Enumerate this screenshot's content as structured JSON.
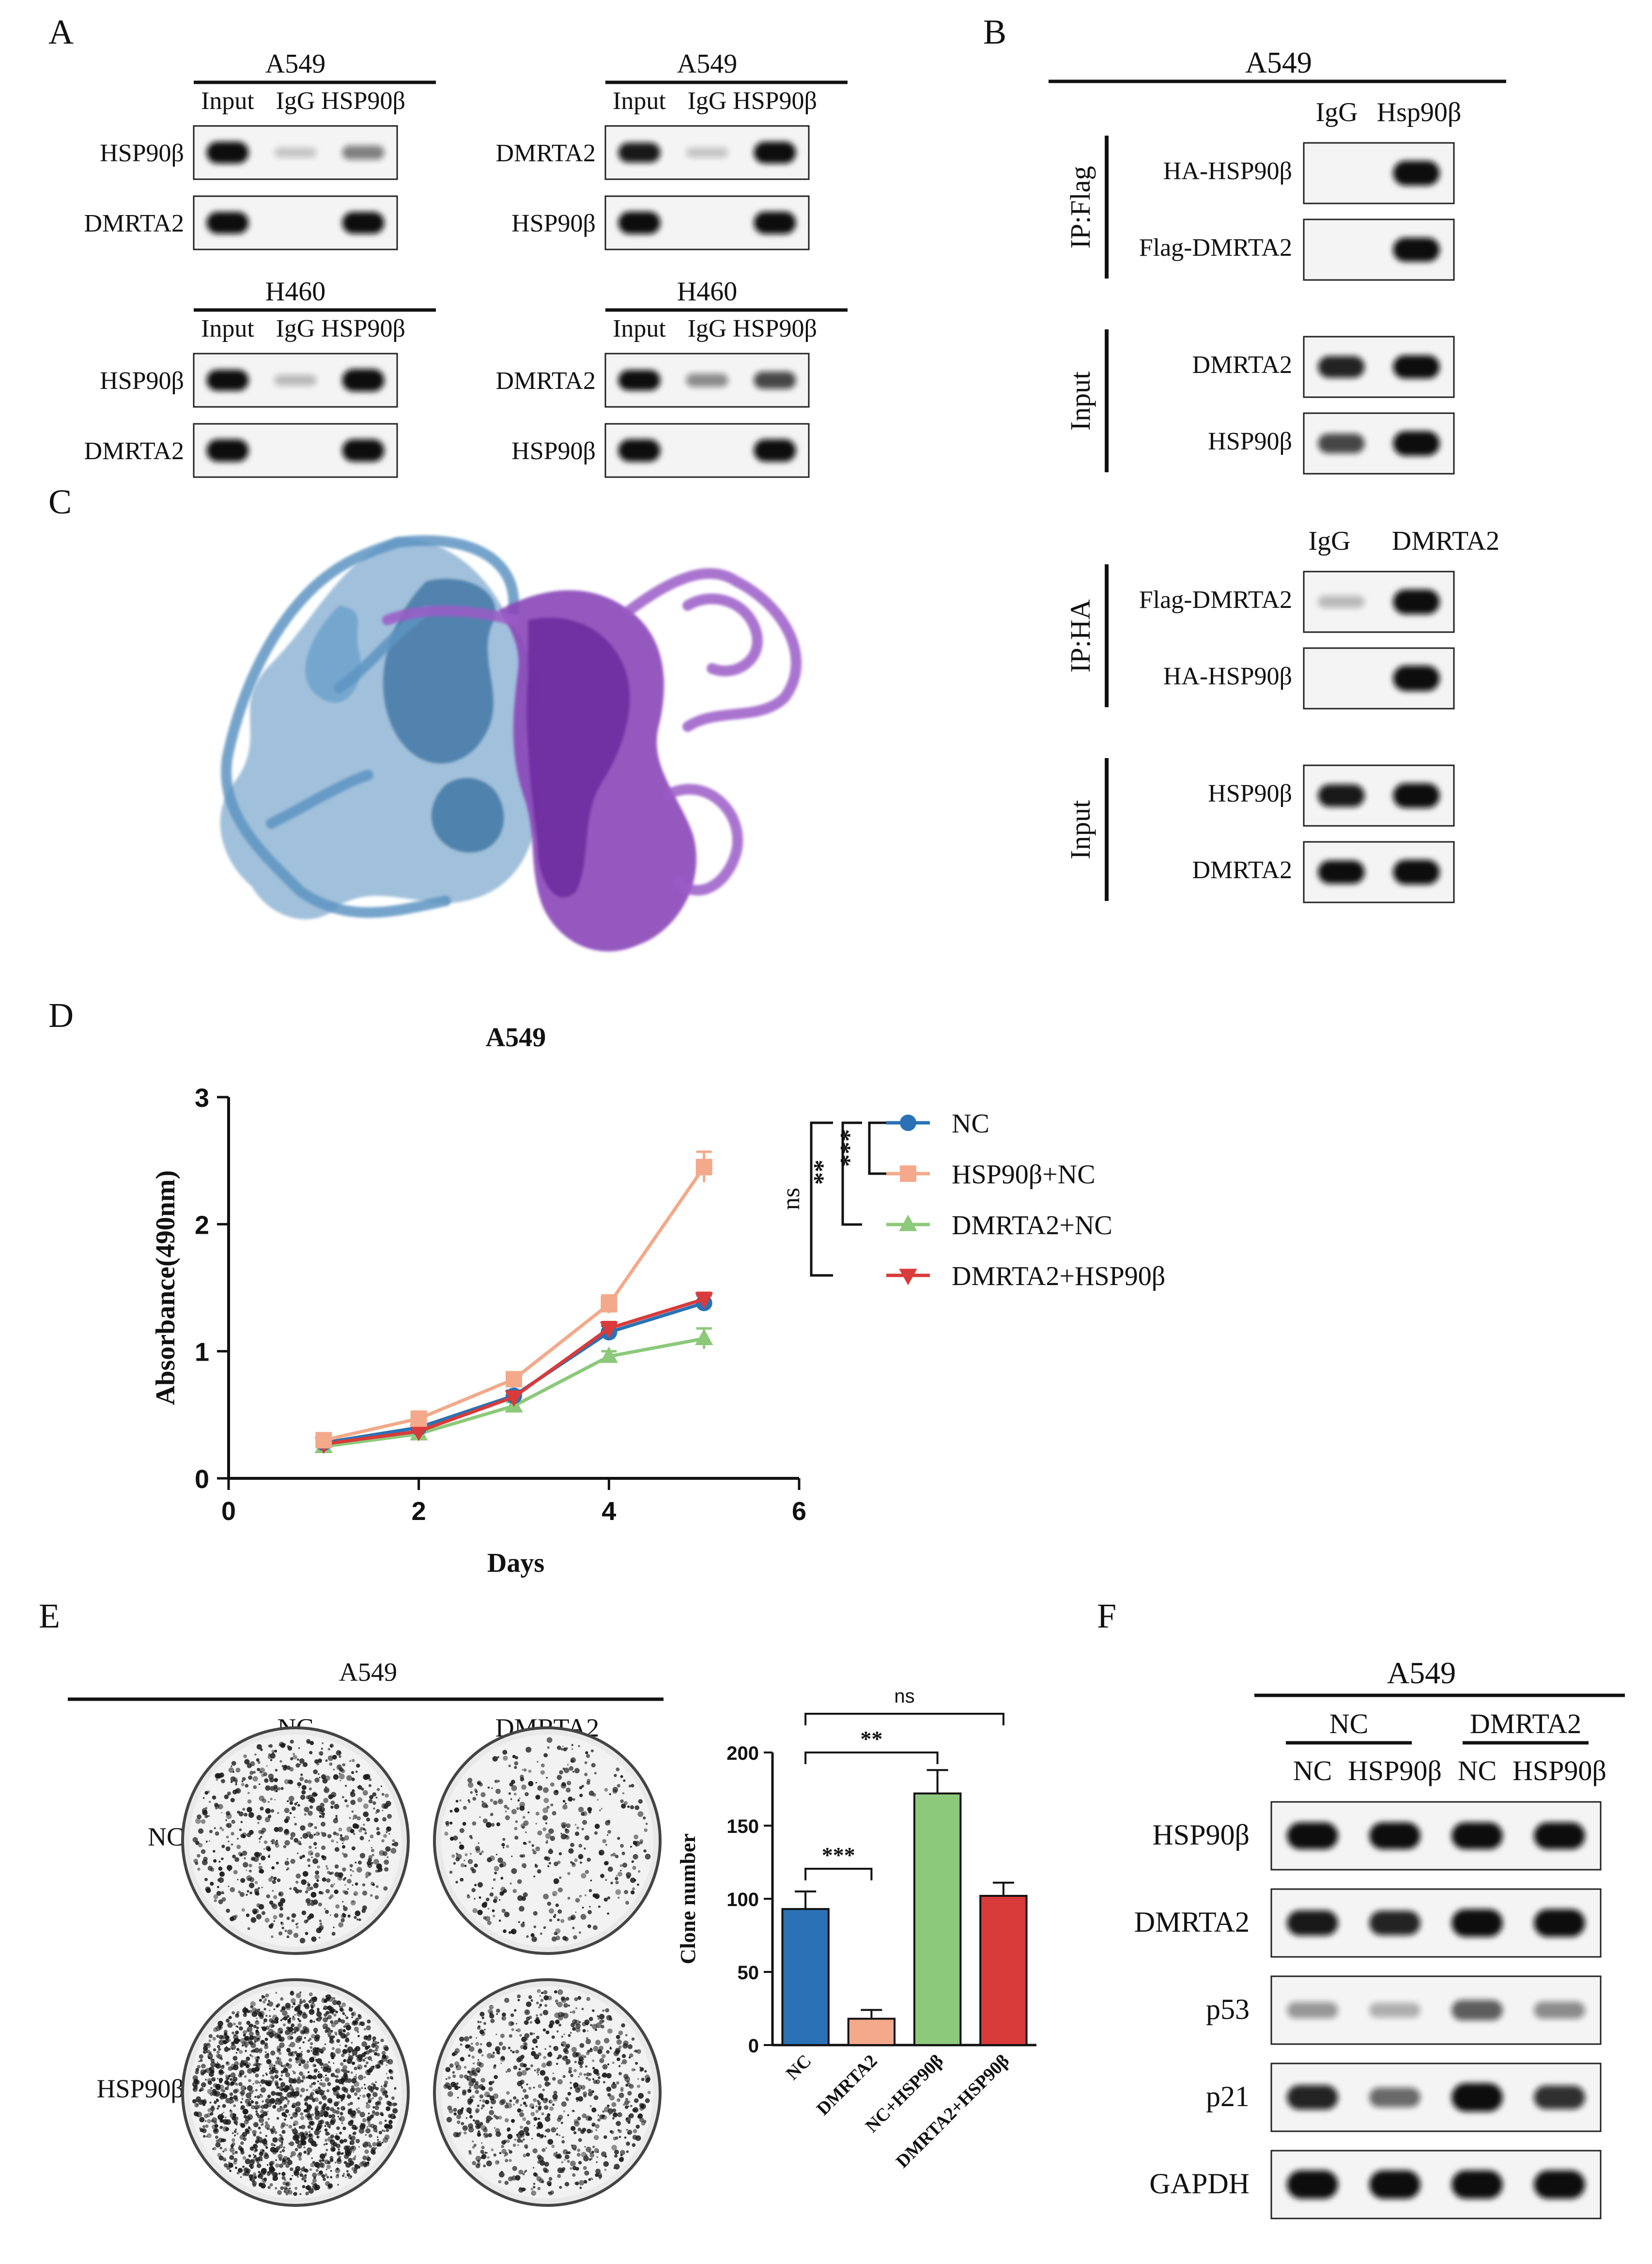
{
  "panel_letters": [
    "A",
    "B",
    "C",
    "D",
    "E",
    "F"
  ],
  "panelA": {
    "blots": [
      {
        "title": "A549",
        "lanes": [
          "Input",
          "IgG",
          "HSP90β"
        ],
        "rows": [
          {
            "label": "HSP90β",
            "bands": [
              0.95,
              0.05,
              0.35
            ]
          },
          {
            "label": "DMRTA2",
            "bands": [
              0.95,
              0.0,
              0.95
            ]
          }
        ]
      },
      {
        "title": "A549",
        "lanes": [
          "Input",
          "IgG",
          "HSP90β"
        ],
        "rows": [
          {
            "label": "DMRTA2",
            "bands": [
              0.8,
              0.05,
              0.95
            ]
          },
          {
            "label": "HSP90β",
            "bands": [
              1.0,
              0.0,
              1.0
            ]
          }
        ]
      },
      {
        "title": "H460",
        "lanes": [
          "Input",
          "IgG",
          "HSP90β"
        ],
        "rows": [
          {
            "label": "HSP90β",
            "bands": [
              0.9,
              0.1,
              1.0
            ]
          },
          {
            "label": "DMRTA2",
            "bands": [
              1.0,
              0.0,
              1.0
            ]
          }
        ]
      },
      {
        "title": "H460",
        "lanes": [
          "Input",
          "IgG",
          "HSP90β"
        ],
        "rows": [
          {
            "label": "DMRTA2",
            "bands": [
              0.85,
              0.3,
              0.6
            ]
          },
          {
            "label": "HSP90β",
            "bands": [
              1.0,
              0.0,
              1.0
            ]
          }
        ]
      }
    ]
  },
  "panelB": {
    "title": "A549",
    "lanesTop": [
      "IgG",
      "Hsp90β"
    ],
    "lanesBottom": [
      "IgG",
      "DMRTA2"
    ],
    "groups": [
      {
        "side": "IP:Flag",
        "rows": [
          {
            "label": "HA-HSP90β",
            "bands": [
              0.0,
              0.95
            ]
          },
          {
            "label": "Flag-DMRTA2",
            "bands": [
              0.0,
              0.9
            ]
          }
        ]
      },
      {
        "side": "Input",
        "rows": [
          {
            "label": "DMRTA2",
            "bands": [
              0.75,
              0.85
            ]
          },
          {
            "label": "HSP90β",
            "bands": [
              0.6,
              0.95
            ]
          }
        ]
      },
      {
        "side": "IP:HA",
        "rows": [
          {
            "label": "Flag-DMRTA2",
            "bands": [
              0.1,
              0.95
            ]
          },
          {
            "label": "HA-HSP90β",
            "bands": [
              0.0,
              1.0
            ]
          }
        ]
      },
      {
        "side": "Input",
        "rows": [
          {
            "label": "HSP90β",
            "bands": [
              0.8,
              0.95
            ]
          },
          {
            "label": "DMRTA2",
            "bands": [
              0.85,
              0.95
            ]
          }
        ]
      }
    ]
  },
  "panelD": {
    "chart_data": {
      "type": "line",
      "title": "A549",
      "xlabel": "Days",
      "ylabel": "Absorbance(490nm)",
      "xlim": [
        0,
        6
      ],
      "ylim": [
        0,
        3
      ],
      "xticks": [
        0,
        2,
        4,
        6
      ],
      "yticks": [
        0,
        1,
        2,
        3
      ],
      "x": [
        1,
        2,
        3,
        4,
        5
      ],
      "series": [
        {
          "name": "NC",
          "color": "#2a72b5",
          "marker": "circle",
          "values": [
            0.28,
            0.4,
            0.65,
            1.15,
            1.38
          ],
          "err": [
            0.02,
            0.03,
            0.04,
            0.05,
            0.06
          ]
        },
        {
          "name": "HSP90β+NC",
          "color": "#f3a98a",
          "marker": "square",
          "values": [
            0.3,
            0.47,
            0.78,
            1.37,
            2.45
          ],
          "err": [
            0.02,
            0.03,
            0.04,
            0.07,
            0.12
          ]
        },
        {
          "name": "DMRTA2+NC",
          "color": "#8cc97a",
          "marker": "triangle",
          "values": [
            0.25,
            0.35,
            0.57,
            0.96,
            1.1
          ],
          "err": [
            0.02,
            0.02,
            0.03,
            0.04,
            0.08
          ]
        },
        {
          "name": "DMRTA2+HSP90β",
          "color": "#d93a3a",
          "marker": "triangle-down",
          "values": [
            0.27,
            0.37,
            0.64,
            1.18,
            1.41
          ],
          "err": [
            0.02,
            0.03,
            0.04,
            0.05,
            0.05
          ]
        }
      ],
      "significance": [
        "***",
        "**",
        "ns"
      ]
    }
  },
  "panelE": {
    "title": "A549",
    "colLabels": [
      "NC",
      "DMRTA2"
    ],
    "rowLabels": [
      "NC",
      "HSP90β"
    ],
    "dish_density": [
      0.35,
      0.18,
      1.0,
      0.45
    ],
    "chart_data": {
      "type": "bar",
      "ylabel": "Clone number",
      "ylim": [
        0,
        200
      ],
      "yticks": [
        0,
        50,
        100,
        150,
        200
      ],
      "categories": [
        "NC",
        "DMRTA2",
        "NC+HSP90β",
        "DMRTA2+HSP90β"
      ],
      "values": [
        93,
        18,
        172,
        102
      ],
      "err": [
        12,
        6,
        16,
        9
      ],
      "colors": [
        "#2a72b5",
        "#f3a98a",
        "#8cc97a",
        "#d93a3a"
      ],
      "significance": [
        "***",
        "**",
        "ns"
      ]
    }
  },
  "panelF": {
    "title": "A549",
    "groups": [
      "NC",
      "DMRTA2"
    ],
    "lanes": [
      "NC",
      "HSP90β",
      "NC",
      "HSP90β"
    ],
    "rows": [
      {
        "label": "HSP90β",
        "bands": [
          0.9,
          0.9,
          0.9,
          0.9
        ]
      },
      {
        "label": "DMRTA2",
        "bands": [
          0.8,
          0.75,
          0.95,
          0.95
        ]
      },
      {
        "label": "p53",
        "bands": [
          0.25,
          0.15,
          0.5,
          0.3
        ]
      },
      {
        "label": "p21",
        "bands": [
          0.75,
          0.45,
          1.0,
          0.7
        ]
      },
      {
        "label": "GAPDH",
        "bands": [
          1.0,
          1.0,
          1.0,
          1.0
        ]
      }
    ]
  }
}
